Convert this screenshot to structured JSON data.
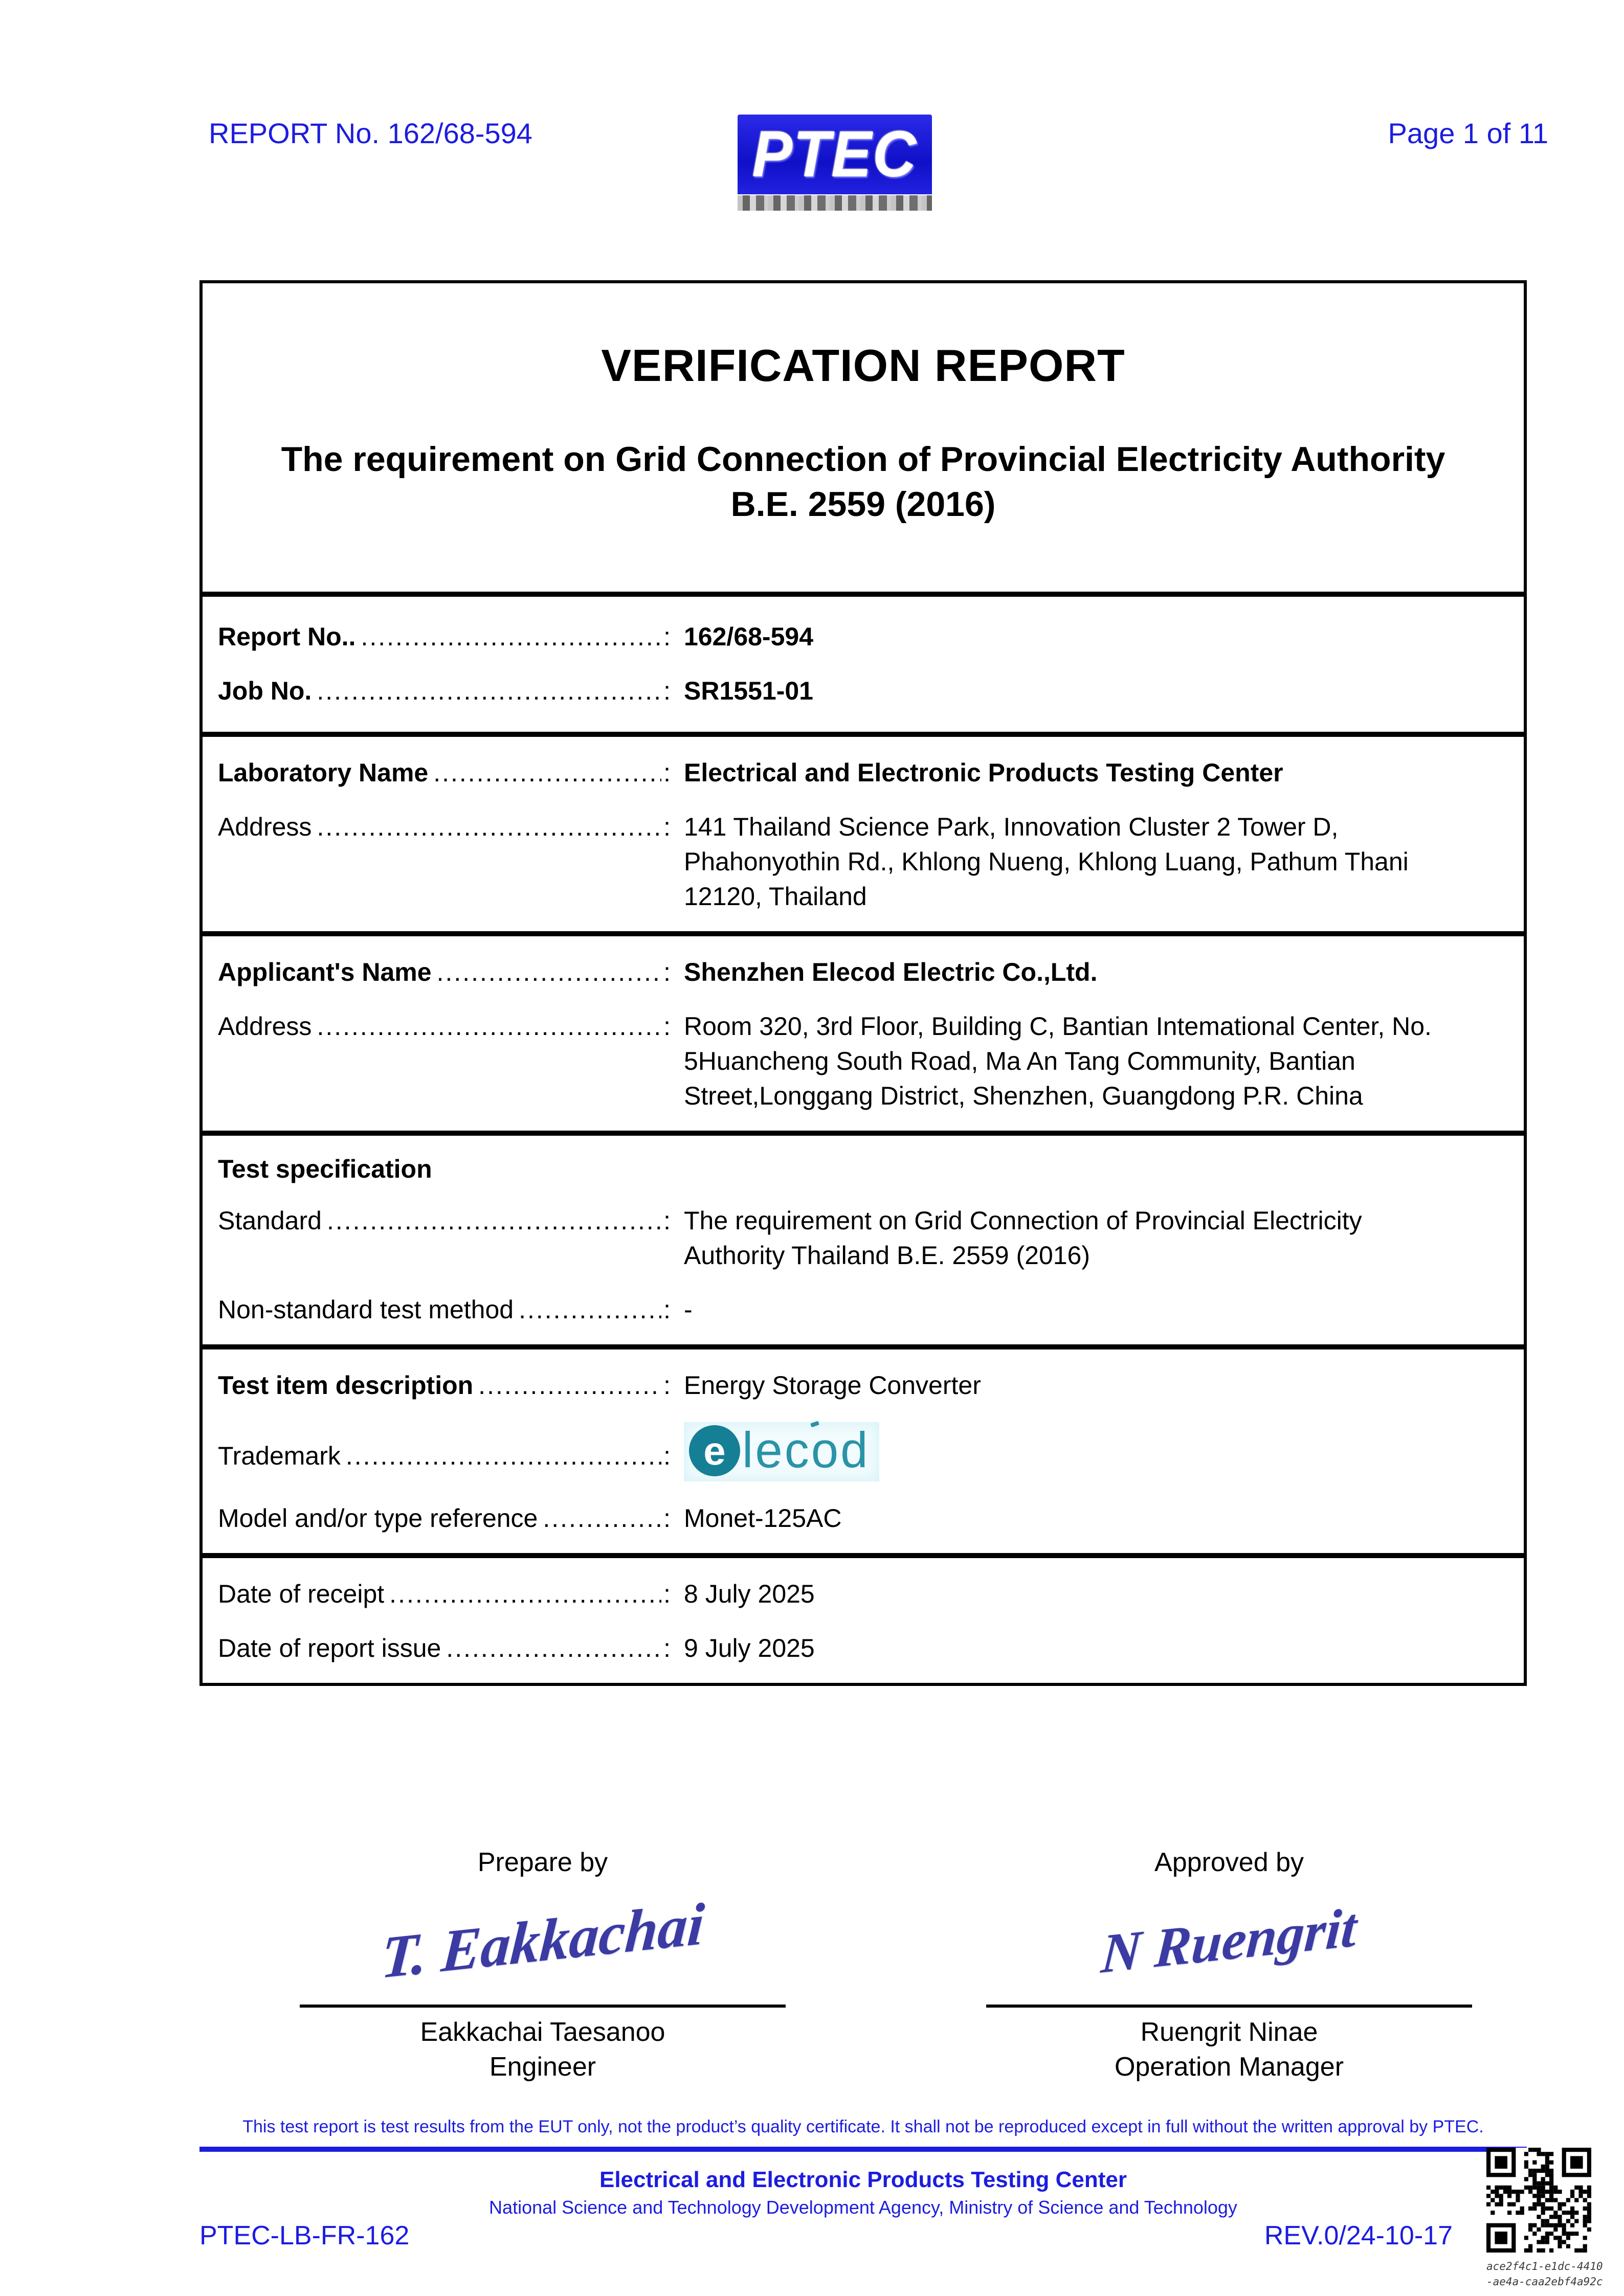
{
  "header": {
    "report_no": "REPORT No. 162/68-594",
    "page_label": "Page 1 of 11",
    "logo_text": "PTEC"
  },
  "title": {
    "main": "VERIFICATION REPORT",
    "subtitle_line1": "The requirement on Grid Connection of Provincial Electricity Authority",
    "subtitle_line2": "B.E. 2559 (2016)"
  },
  "punct": {
    "colon": ":"
  },
  "table": {
    "report_no": {
      "label": "Report No..",
      "dots": "..................................................",
      "value": "162/68-594"
    },
    "job_no": {
      "label": "Job No.",
      "dots": "..................................................",
      "value": "SR1551-01"
    },
    "laboratory": {
      "label": "Laboratory Name",
      "dots": "..................................................",
      "value": "Electrical and Electronic Products Testing Center"
    },
    "lab_address": {
      "label": "Address",
      "dots": "..................................................",
      "lines": [
        "141 Thailand Science Park, Innovation Cluster 2 Tower D,",
        "Phahonyothin Rd., Khlong Nueng, Khlong Luang, Pathum Thani",
        "12120, Thailand"
      ]
    },
    "applicant": {
      "label": "Applicant's Name",
      "dots": "..................................................",
      "value": "Shenzhen Elecod Electric Co.,Ltd."
    },
    "applicant_address": {
      "label": "Address",
      "dots": "..................................................",
      "lines": [
        "Room 320, 3rd Floor, Building C, Bantian Intemational Center, No.",
        "5Huancheng South Road, Ma An Tang Community, Bantian",
        "Street,Longgang District, Shenzhen, Guangdong P.R. China"
      ]
    },
    "test_spec_heading": "Test specification",
    "standard": {
      "label": "Standard",
      "dots": "..................................................",
      "lines": [
        "The requirement on Grid Connection of Provincial Electricity",
        "Authority Thailand B.E. 2559 (2016)"
      ]
    },
    "non_standard": {
      "label": "Non-standard test method",
      "dots": "..................................................",
      "value": "-"
    },
    "test_item": {
      "label": "Test item description",
      "dots": "..................................................",
      "value": "Energy Storage Converter"
    },
    "trademark": {
      "label": "Trademark",
      "dots": "..................................................",
      "logo_first": "e",
      "logo_rest": "lecod"
    },
    "model": {
      "label": "Model and/or type reference",
      "dots": "..................................................",
      "value": "Monet-125AC"
    },
    "date_receipt": {
      "label": "Date of receipt",
      "dots": "..................................................",
      "value": "8 July 2025"
    },
    "date_issue": {
      "label": "Date of report issue",
      "dots": "..................................................",
      "value": "9 July 2025"
    }
  },
  "signatures": {
    "prepared": {
      "caption": "Prepare by",
      "script": "T. Eakkachai",
      "name": "Eakkachai Taesanoo",
      "role": "Engineer"
    },
    "approved": {
      "caption": "Approved by",
      "script": "N Ruengrit",
      "name": "Ruengrit Ninae",
      "role": "Operation Manager"
    }
  },
  "footer": {
    "disclaimer": "This test report is test results from the EUT only, not the product’s quality certificate. It shall not be reproduced except in full without the written approval by PTEC.",
    "center_title": "Electrical and Electronic Products Testing Center",
    "center_subtitle": "National Science and Technology Development Agency, Ministry of Science and Technology",
    "doc_code": "PTEC-LB-FR-162",
    "revision": "REV.0/24-10-17",
    "qr_caption_line1": "ace2f4c1-e1dc-4410",
    "qr_caption_line2": "-ae4a-caa2ebf4a92c"
  },
  "colors": {
    "accent_blue": "#1c1ce0",
    "ptec_logo_blue": "#1414d6",
    "elecod_teal": "#2a93a8",
    "elecod_disc_teal": "#157f96",
    "signature_ink": "#3b3ba3"
  }
}
